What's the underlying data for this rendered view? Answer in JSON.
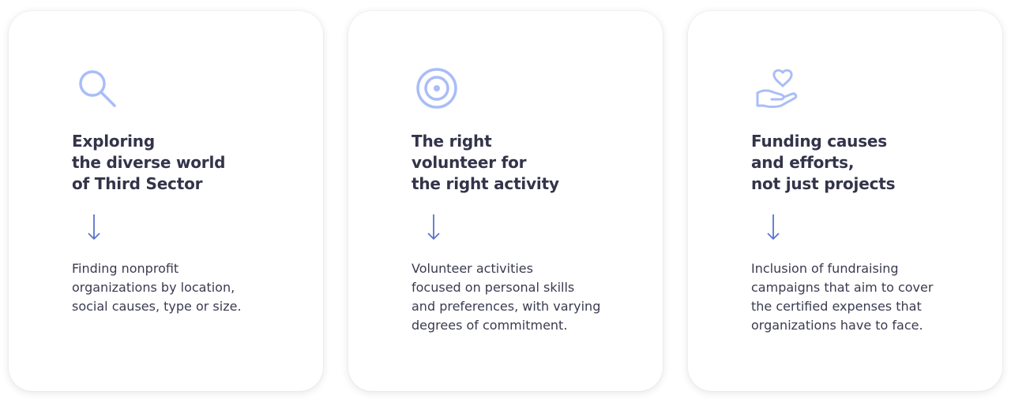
{
  "colors": {
    "icon_accent": "#a9bdf7",
    "arrow": "#5b73d1",
    "title": "#33344a",
    "text": "#3a3b50"
  },
  "cards": [
    {
      "icon": "magnifying-glass-icon",
      "title": "Exploring\nthe diverse world\nof Third Sector",
      "arrow_icon": "arrow-down-icon",
      "description": "Finding nonprofit\norganizations by location,\nsocial causes, type or size."
    },
    {
      "icon": "target-icon",
      "title": "The right\nvolunteer for\nthe right activity",
      "arrow_icon": "arrow-down-icon",
      "description": "Volunteer activities\nfocused on personal skills\nand preferences, with varying\ndegrees of commitment."
    },
    {
      "icon": "hand-heart-icon",
      "title": "Funding causes\nand efforts,\nnot just projects",
      "arrow_icon": "arrow-down-icon",
      "description": "Inclusion of fundraising\ncampaigns that aim to cover\nthe certified expenses that\norganizations have to face."
    }
  ]
}
